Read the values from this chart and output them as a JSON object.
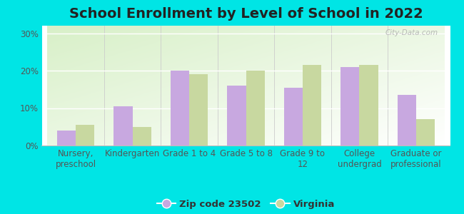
{
  "title": "School Enrollment by Level of School in 2022",
  "categories": [
    "Nursery,\npreschool",
    "Kindergarten",
    "Grade 1 to 4",
    "Grade 5 to 8",
    "Grade 9 to\n12",
    "College\nundergrad",
    "Graduate or\nprofessional"
  ],
  "zip_values": [
    4.0,
    10.5,
    20.0,
    16.0,
    15.5,
    21.0,
    13.5
  ],
  "va_values": [
    5.5,
    5.0,
    19.0,
    20.0,
    21.5,
    21.5,
    7.0
  ],
  "zip_color": "#c8a8e0",
  "va_color": "#c8d8a0",
  "background_color": "#00e5e5",
  "ylim": [
    0,
    32
  ],
  "yticks": [
    0,
    10,
    20,
    30
  ],
  "ytick_labels": [
    "0%",
    "10%",
    "20%",
    "30%"
  ],
  "legend_zip_label": "Zip code 23502",
  "legend_va_label": "Virginia",
  "title_fontsize": 14,
  "tick_fontsize": 8.5,
  "legend_fontsize": 9.5
}
